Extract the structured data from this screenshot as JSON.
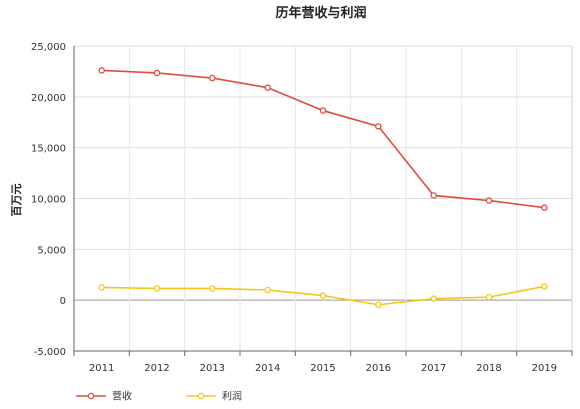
{
  "chart_data": {
    "type": "line",
    "title": "历年营收与利润",
    "ylabel": "百万元",
    "xlabel": "",
    "categories": [
      "2011",
      "2012",
      "2013",
      "2014",
      "2015",
      "2016",
      "2017",
      "2018",
      "2019"
    ],
    "series": [
      {
        "name": "营收",
        "color": "#e04b3a",
        "values": [
          22600,
          22350,
          21850,
          20900,
          18650,
          17100,
          10300,
          9800,
          9100
        ]
      },
      {
        "name": "利润",
        "color": "#f5c518",
        "values": [
          1250,
          1150,
          1150,
          1000,
          450,
          -450,
          150,
          300,
          1350
        ]
      }
    ],
    "ylim": [
      -5000,
      25000
    ],
    "yticks": [
      "-5,000",
      "0",
      "5,000",
      "10,000",
      "15,000",
      "20,000",
      "25,000"
    ],
    "ytick_values": [
      -5000,
      0,
      5000,
      10000,
      15000,
      20000,
      25000
    ],
    "grid": true,
    "legend_position": "bottom-left"
  }
}
